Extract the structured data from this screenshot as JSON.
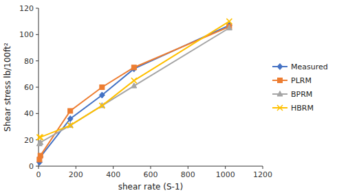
{
  "chart_data": {
    "type": "line",
    "xlabel": "shear rate (S-1)",
    "ylabel": "Shear stress lb/100ft²",
    "x": [
      5,
      10,
      170,
      340,
      511,
      1021
    ],
    "series": [
      {
        "name": "Measured",
        "color": "#4472C4",
        "marker": "diamond",
        "values": [
          3,
          7,
          36,
          54,
          74,
          107
        ]
      },
      {
        "name": "PLRM",
        "color": "#ED7D31",
        "marker": "square",
        "values": [
          5,
          8,
          42,
          60,
          75,
          106
        ]
      },
      {
        "name": "BPRM",
        "color": "#A5A5A5",
        "marker": "triangle",
        "values": [
          17,
          18,
          31,
          46,
          61,
          105
        ]
      },
      {
        "name": "HBRM",
        "color": "#FFC000",
        "marker": "x",
        "values": [
          22,
          22,
          31,
          46,
          65,
          110
        ]
      }
    ],
    "xlim": [
      0,
      1200
    ],
    "ylim": [
      0,
      120
    ],
    "xticks": [
      0,
      200,
      400,
      600,
      800,
      1000,
      1200
    ],
    "yticks": [
      0,
      20,
      40,
      60,
      80,
      100,
      120
    ],
    "grid": false,
    "legend": "right"
  }
}
